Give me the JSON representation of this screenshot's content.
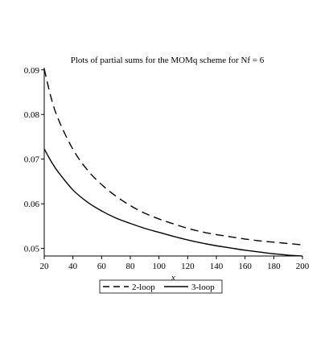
{
  "chart_data": {
    "type": "line",
    "title": "Plots of partial sums for the MOMq scheme for Nf = 6",
    "xlabel": "x",
    "ylabel": "",
    "xlim": [
      20,
      200
    ],
    "ylim": [
      0.0483,
      0.0905
    ],
    "x_ticks": [
      20,
      40,
      60,
      80,
      100,
      120,
      140,
      160,
      180,
      200
    ],
    "y_ticks": [
      0.05,
      0.06,
      0.07,
      0.08,
      0.09
    ],
    "grid": false,
    "legend_position": "bottom-center",
    "x": [
      20,
      25,
      30,
      40,
      50,
      60,
      70,
      80,
      90,
      100,
      110,
      120,
      130,
      140,
      150,
      160,
      170,
      180,
      190,
      200
    ],
    "series": [
      {
        "name": "2-loop",
        "style": "dashed",
        "color": "#000000",
        "values": [
          0.0902,
          0.0835,
          0.0788,
          0.0722,
          0.0676,
          0.0643,
          0.0617,
          0.0596,
          0.0579,
          0.0566,
          0.0555,
          0.0545,
          0.0537,
          0.0531,
          0.0526,
          0.0521,
          0.0517,
          0.0514,
          0.0511,
          0.0508
        ]
      },
      {
        "name": "3-loop",
        "style": "solid",
        "color": "#000000",
        "values": [
          0.0723,
          0.0694,
          0.067,
          0.0631,
          0.0604,
          0.0584,
          0.0568,
          0.0556,
          0.0545,
          0.0536,
          0.0527,
          0.0519,
          0.0512,
          0.0506,
          0.0501,
          0.0496,
          0.0492,
          0.0488,
          0.0485,
          0.0483
        ]
      }
    ]
  }
}
